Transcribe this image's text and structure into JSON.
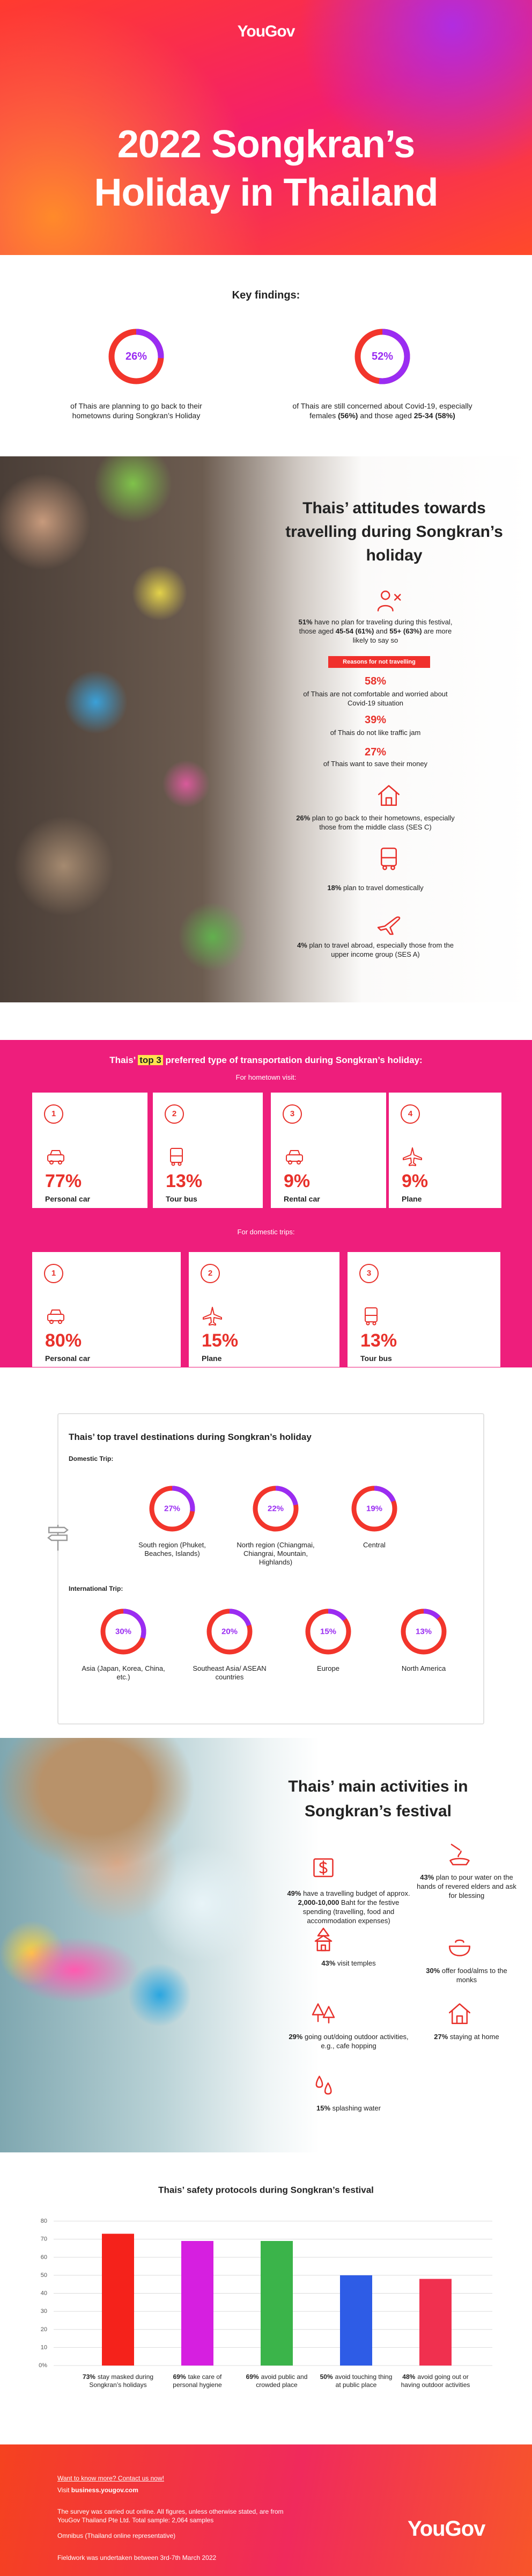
{
  "header": {
    "logo": "YouGov",
    "title_lines": [
      "2022 Songkran’s",
      "Holiday in Thailand"
    ]
  },
  "key_findings": {
    "title": "Key findings:",
    "items": [
      {
        "value": 26,
        "label": "26%",
        "runs": [
          "of Thais are planning to go back to their hometowns during Songkran’s Holiday"
        ]
      },
      {
        "value": 52,
        "label": "52%",
        "runs": [
          "of Thais are still concerned about Covid-19, especially females ",
          "(56%)",
          " and those aged ",
          "25-34 (58%)"
        ]
      }
    ]
  },
  "attitudes": {
    "title": "Thais’ attitudes towards travelling during Songkran’s holiday",
    "items": [
      {
        "runs": [
          "51%",
          " have no plan for traveling during this festival, those aged ",
          "45-54 (61%)",
          " and ",
          "55+ (63%)",
          " are more likely to say so"
        ]
      }
    ],
    "reasons_badge": "Reasons for not travelling",
    "reasons": [
      {
        "value": "58%",
        "text": "of Thais are not comfortable and worried about Covid-19 situation"
      },
      {
        "value": "39%",
        "text": "of Thais do not like traffic jam"
      },
      {
        "value": "27%",
        "text": "of Thais want to save their money"
      }
    ],
    "plans": [
      {
        "runs": [
          "26%",
          " plan to go back to their hometowns, especially those from the middle class (SES C)"
        ]
      },
      {
        "runs": [
          "18%",
          " plan to travel domestically"
        ]
      },
      {
        "runs": [
          "4%",
          " plan to travel abroad, especially those from the upper income group (SES A)"
        ]
      }
    ]
  },
  "transportation": {
    "title_runs": [
      "Thais’ ",
      "top 3",
      " preferred type of transportation during Songkran’s holiday:"
    ],
    "hometown_label": "For hometown visit:",
    "hometown": [
      {
        "rank": 1,
        "value": "77%",
        "mode": "Personal car"
      },
      {
        "rank": 2,
        "value": "13%",
        "mode": "Tour bus"
      },
      {
        "rank": 3,
        "value": "9%",
        "mode": "Rental car"
      },
      {
        "rank": 4,
        "value": "9%",
        "mode": "Plane"
      }
    ],
    "domestic_label": "For domestic trips:",
    "domestic": [
      {
        "rank": 1,
        "value": "80%",
        "mode": "Personal car"
      },
      {
        "rank": 2,
        "value": "15%",
        "mode": "Plane"
      },
      {
        "rank": 3,
        "value": "13%",
        "mode": "Tour bus"
      }
    ]
  },
  "destinations": {
    "title": "Thais’ top travel destinations during Songkran’s holiday",
    "domestic_label": "Domestic Trip:",
    "domestic": [
      {
        "value": 27,
        "label": "27%",
        "name": "South region (Phuket, Beaches, Islands)"
      },
      {
        "value": 22,
        "label": "22%",
        "name": "North region (Chiangmai, Chiangrai, Mountain, Highlands)"
      },
      {
        "value": 19,
        "label": "19%",
        "name": "Central"
      }
    ],
    "international_label": "International Trip:",
    "international": [
      {
        "value": 30,
        "label": "30%",
        "name": "Asia (Japan, Korea, China, etc.)"
      },
      {
        "value": 20,
        "label": "20%",
        "name": "Southeast Asia/ ASEAN countries"
      },
      {
        "value": 15,
        "label": "15%",
        "name": "Europe"
      },
      {
        "value": 13,
        "label": "13%",
        "name": "North America"
      }
    ]
  },
  "activities": {
    "title": "Thais’ main activities in Songkran’s festival",
    "items": [
      {
        "runs": [
          "49%",
          " have a travelling budget of approx. ",
          "2,000-10,000",
          " Baht for the festive spending (travelling, food and accommodation expenses)"
        ]
      },
      {
        "runs": [
          "43%",
          " plan to pour water on the hands of revered elders and ask for blessing"
        ]
      },
      {
        "runs": [
          "43%",
          " visit temples"
        ]
      },
      {
        "runs": [
          "30%",
          " offer food/alms to the monks"
        ]
      },
      {
        "runs": [
          "29%",
          " going out/doing outdoor activities, e.g., cafe hopping"
        ]
      },
      {
        "runs": [
          "27%",
          " staying at home"
        ]
      },
      {
        "runs": [
          "15%",
          " splashing water"
        ]
      }
    ]
  },
  "chart_data": {
    "type": "bar",
    "title": "Thais’ safety protocols during Songkran’s festival",
    "categories": [
      "stay masked during Songkran’s holidays",
      "take care of personal hygiene",
      "avoid public and crowded place",
      "avoid touching thing at public place",
      "avoid going out or having outdoor activities"
    ],
    "values": [
      73,
      69,
      69,
      50,
      48
    ],
    "value_labels": [
      "73%",
      "69%",
      "69%",
      "50%",
      "48%"
    ],
    "colors": [
      "#f5221b",
      "#d61fe0",
      "#3bb44a",
      "#2e5ce6",
      "#f0304f"
    ],
    "ylim": [
      0,
      80
    ],
    "yticks": [
      {
        "value": 0,
        "label": "0%"
      },
      10,
      20,
      30,
      40,
      50,
      60,
      70,
      80
    ],
    "grid": true
  },
  "footer": {
    "contact": "Want to know more? Contact us now!",
    "visit_runs": [
      "Visit ",
      "business.yougov.com"
    ],
    "survey_note": "The survey was carried out online. All figures, unless otherwise stated, are from YouGov Thailand Pte Ltd. Total sample: 2,064 samples",
    "omnibus": "Omnibus (Thailand online representative)",
    "fieldwork": "Fieldwork was undertaken between 3rd-7th March 2022",
    "logo": "YouGov"
  }
}
